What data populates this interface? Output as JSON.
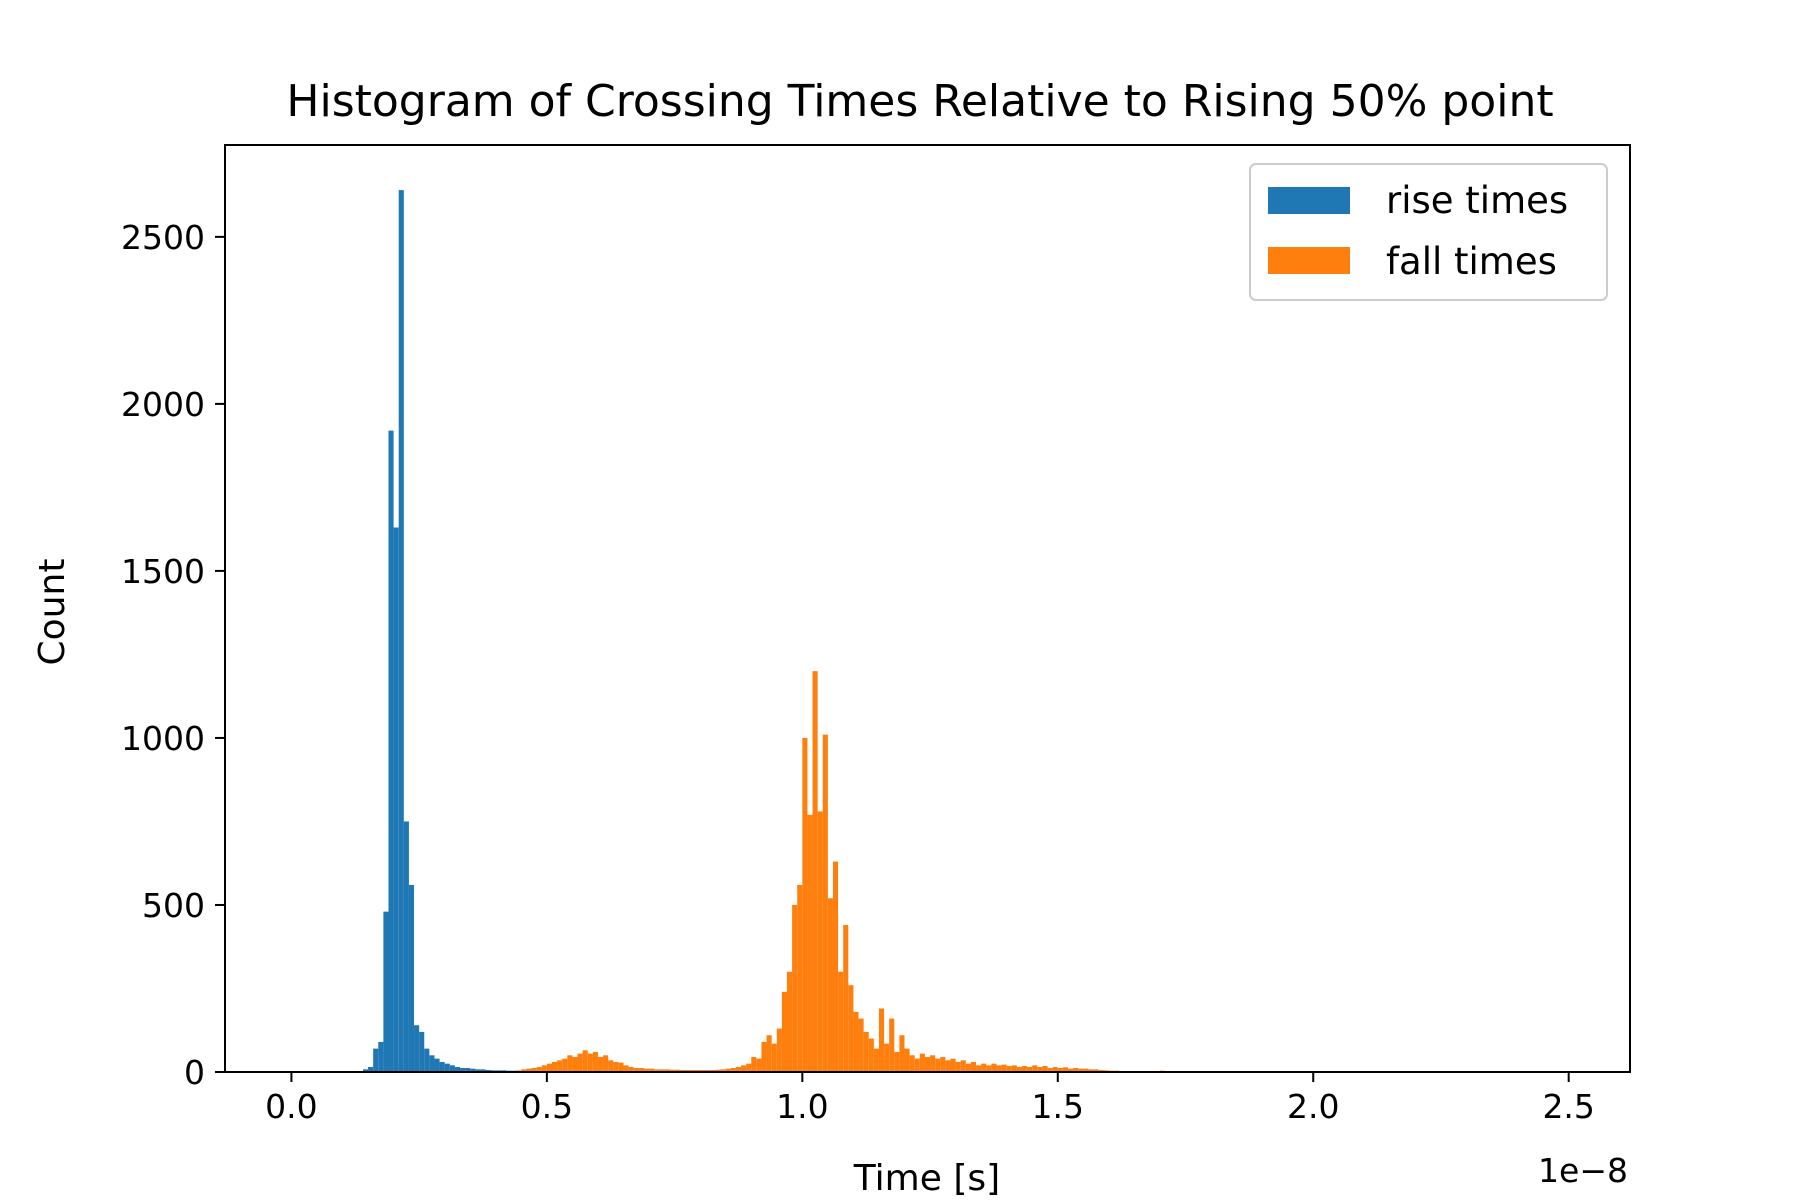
{
  "chart_data": {
    "type": "bar",
    "title": "Histogram of Crossing Times Relative to Rising 50% point",
    "xlabel": "Time [s]",
    "ylabel": "Count",
    "x_offset_label": "1e−8",
    "xlim": [
      -0.13,
      2.62
    ],
    "ylim": [
      0,
      2775
    ],
    "x_ticks": [
      0.0,
      0.5,
      1.0,
      1.5,
      2.0,
      2.5
    ],
    "x_tick_labels": [
      "0.0",
      "0.5",
      "1.0",
      "1.5",
      "2.0",
      "2.5"
    ],
    "y_ticks": [
      0,
      500,
      1000,
      1500,
      2000,
      2500
    ],
    "y_tick_labels": [
      "0",
      "500",
      "1000",
      "1500",
      "2000",
      "2500"
    ],
    "legend_position": "top-right",
    "grid": false,
    "series": [
      {
        "name": "rise times",
        "color": "#1f77b4",
        "bin_width": 0.01,
        "bins": [
          [
            0.14,
            8
          ],
          [
            0.15,
            15
          ],
          [
            0.16,
            70
          ],
          [
            0.17,
            90
          ],
          [
            0.18,
            480
          ],
          [
            0.19,
            1920
          ],
          [
            0.2,
            1630
          ],
          [
            0.21,
            2640
          ],
          [
            0.22,
            750
          ],
          [
            0.23,
            560
          ],
          [
            0.24,
            140
          ],
          [
            0.25,
            120
          ],
          [
            0.26,
            70
          ],
          [
            0.27,
            50
          ],
          [
            0.28,
            40
          ],
          [
            0.29,
            30
          ],
          [
            0.3,
            25
          ],
          [
            0.31,
            20
          ],
          [
            0.32,
            15
          ],
          [
            0.33,
            12
          ],
          [
            0.34,
            12
          ],
          [
            0.35,
            10
          ],
          [
            0.36,
            8
          ],
          [
            0.37,
            8
          ],
          [
            0.38,
            6
          ],
          [
            0.39,
            5
          ],
          [
            0.4,
            5
          ],
          [
            0.41,
            5
          ],
          [
            0.42,
            4
          ],
          [
            0.43,
            4
          ],
          [
            0.44,
            3
          ],
          [
            0.45,
            3
          ]
        ]
      },
      {
        "name": "fall times",
        "color": "#ff7f0e",
        "bin_width": 0.01,
        "bins": [
          [
            0.44,
            5
          ],
          [
            0.45,
            8
          ],
          [
            0.46,
            10
          ],
          [
            0.47,
            12
          ],
          [
            0.48,
            15
          ],
          [
            0.49,
            20
          ],
          [
            0.5,
            25
          ],
          [
            0.51,
            30
          ],
          [
            0.52,
            35
          ],
          [
            0.53,
            40
          ],
          [
            0.54,
            50
          ],
          [
            0.55,
            45
          ],
          [
            0.56,
            55
          ],
          [
            0.57,
            65
          ],
          [
            0.58,
            55
          ],
          [
            0.59,
            60
          ],
          [
            0.6,
            45
          ],
          [
            0.61,
            50
          ],
          [
            0.62,
            35
          ],
          [
            0.63,
            30
          ],
          [
            0.64,
            28
          ],
          [
            0.65,
            20
          ],
          [
            0.66,
            15
          ],
          [
            0.67,
            12
          ],
          [
            0.68,
            12
          ],
          [
            0.69,
            10
          ],
          [
            0.7,
            10
          ],
          [
            0.71,
            8
          ],
          [
            0.72,
            8
          ],
          [
            0.73,
            8
          ],
          [
            0.74,
            7
          ],
          [
            0.75,
            7
          ],
          [
            0.76,
            6
          ],
          [
            0.77,
            6
          ],
          [
            0.78,
            6
          ],
          [
            0.79,
            6
          ],
          [
            0.8,
            6
          ],
          [
            0.81,
            6
          ],
          [
            0.82,
            6
          ],
          [
            0.83,
            7
          ],
          [
            0.84,
            8
          ],
          [
            0.85,
            10
          ],
          [
            0.86,
            12
          ],
          [
            0.87,
            15
          ],
          [
            0.88,
            20
          ],
          [
            0.89,
            25
          ],
          [
            0.9,
            45
          ],
          [
            0.91,
            40
          ],
          [
            0.92,
            90
          ],
          [
            0.93,
            110
          ],
          [
            0.94,
            85
          ],
          [
            0.95,
            130
          ],
          [
            0.96,
            240
          ],
          [
            0.97,
            300
          ],
          [
            0.98,
            500
          ],
          [
            0.99,
            560
          ],
          [
            1.0,
            1000
          ],
          [
            1.01,
            770
          ],
          [
            1.02,
            1200
          ],
          [
            1.03,
            780
          ],
          [
            1.04,
            1010
          ],
          [
            1.05,
            520
          ],
          [
            1.06,
            630
          ],
          [
            1.07,
            300
          ],
          [
            1.08,
            440
          ],
          [
            1.09,
            260
          ],
          [
            1.1,
            180
          ],
          [
            1.11,
            160
          ],
          [
            1.12,
            120
          ],
          [
            1.13,
            100
          ],
          [
            1.14,
            70
          ],
          [
            1.15,
            190
          ],
          [
            1.16,
            85
          ],
          [
            1.17,
            160
          ],
          [
            1.18,
            60
          ],
          [
            1.19,
            110
          ],
          [
            1.2,
            70
          ],
          [
            1.21,
            50
          ],
          [
            1.22,
            40
          ],
          [
            1.23,
            55
          ],
          [
            1.24,
            45
          ],
          [
            1.25,
            50
          ],
          [
            1.26,
            40
          ],
          [
            1.27,
            45
          ],
          [
            1.28,
            35
          ],
          [
            1.29,
            40
          ],
          [
            1.3,
            30
          ],
          [
            1.31,
            35
          ],
          [
            1.32,
            25
          ],
          [
            1.33,
            30
          ],
          [
            1.34,
            20
          ],
          [
            1.35,
            25
          ],
          [
            1.36,
            20
          ],
          [
            1.37,
            25
          ],
          [
            1.38,
            20
          ],
          [
            1.39,
            22
          ],
          [
            1.4,
            18
          ],
          [
            1.41,
            20
          ],
          [
            1.42,
            15
          ],
          [
            1.43,
            18
          ],
          [
            1.44,
            15
          ],
          [
            1.45,
            20
          ],
          [
            1.46,
            15
          ],
          [
            1.47,
            18
          ],
          [
            1.48,
            12
          ],
          [
            1.49,
            15
          ],
          [
            1.5,
            12
          ],
          [
            1.51,
            14
          ],
          [
            1.52,
            10
          ],
          [
            1.53,
            12
          ],
          [
            1.54,
            10
          ],
          [
            1.55,
            10
          ],
          [
            1.56,
            8
          ],
          [
            1.57,
            8
          ],
          [
            1.58,
            6
          ],
          [
            1.59,
            5
          ],
          [
            1.6,
            4
          ],
          [
            1.61,
            4
          ],
          [
            1.62,
            3
          ],
          [
            1.63,
            3
          ],
          [
            1.64,
            3
          ],
          [
            1.65,
            2
          ],
          [
            1.66,
            2
          ],
          [
            1.67,
            2
          ],
          [
            1.68,
            2
          ],
          [
            1.69,
            2
          ],
          [
            1.7,
            4
          ],
          [
            1.71,
            2
          ]
        ]
      }
    ]
  }
}
